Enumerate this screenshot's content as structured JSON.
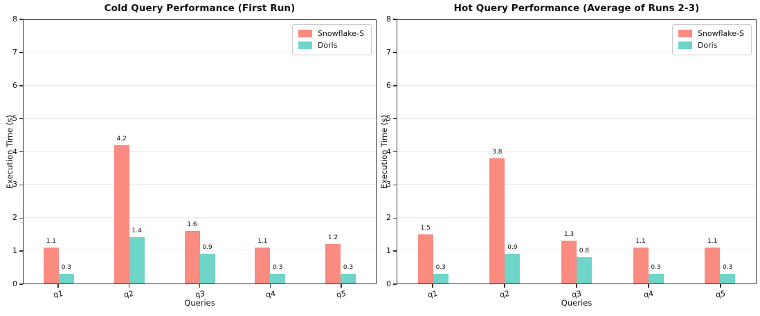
{
  "colors": {
    "snowflake": "#F98B80",
    "doris": "#6FD5C8",
    "grid": "#ECECEC",
    "spine": "#333333",
    "legend_border": "#CCCCCC",
    "text": "#111111",
    "background": "#FFFFFF"
  },
  "chart_data": [
    {
      "type": "bar",
      "title": "Cold Query Performance (First Run)",
      "xlabel": "Queries",
      "ylabel": "Execution Time (s)",
      "ylim": [
        0,
        8
      ],
      "yticks": [
        0,
        1,
        2,
        3,
        4,
        5,
        6,
        7,
        8
      ],
      "grid": true,
      "legend_position": "upper right",
      "categories": [
        "q1",
        "q2",
        "q3",
        "q4",
        "q5"
      ],
      "series": [
        {
          "name": "Snowflake-S",
          "color": "snowflake",
          "values": [
            1.1,
            4.2,
            1.6,
            1.1,
            1.2
          ]
        },
        {
          "name": "Doris",
          "color": "doris",
          "values": [
            0.3,
            1.4,
            0.9,
            0.3,
            0.3
          ]
        }
      ]
    },
    {
      "type": "bar",
      "title": "Hot Query Performance (Average of Runs 2-3)",
      "xlabel": "Queries",
      "ylabel": "Execution Time (s)",
      "ylim": [
        0,
        8
      ],
      "yticks": [
        0,
        1,
        2,
        3,
        4,
        5,
        6,
        7,
        8
      ],
      "grid": true,
      "legend_position": "upper right",
      "categories": [
        "q1",
        "q2",
        "q3",
        "q4",
        "q5"
      ],
      "series": [
        {
          "name": "Snowflake-S",
          "color": "snowflake",
          "values": [
            1.5,
            3.8,
            1.3,
            1.1,
            1.1
          ]
        },
        {
          "name": "Doris",
          "color": "doris",
          "values": [
            0.3,
            0.9,
            0.8,
            0.3,
            0.3
          ]
        }
      ]
    }
  ]
}
